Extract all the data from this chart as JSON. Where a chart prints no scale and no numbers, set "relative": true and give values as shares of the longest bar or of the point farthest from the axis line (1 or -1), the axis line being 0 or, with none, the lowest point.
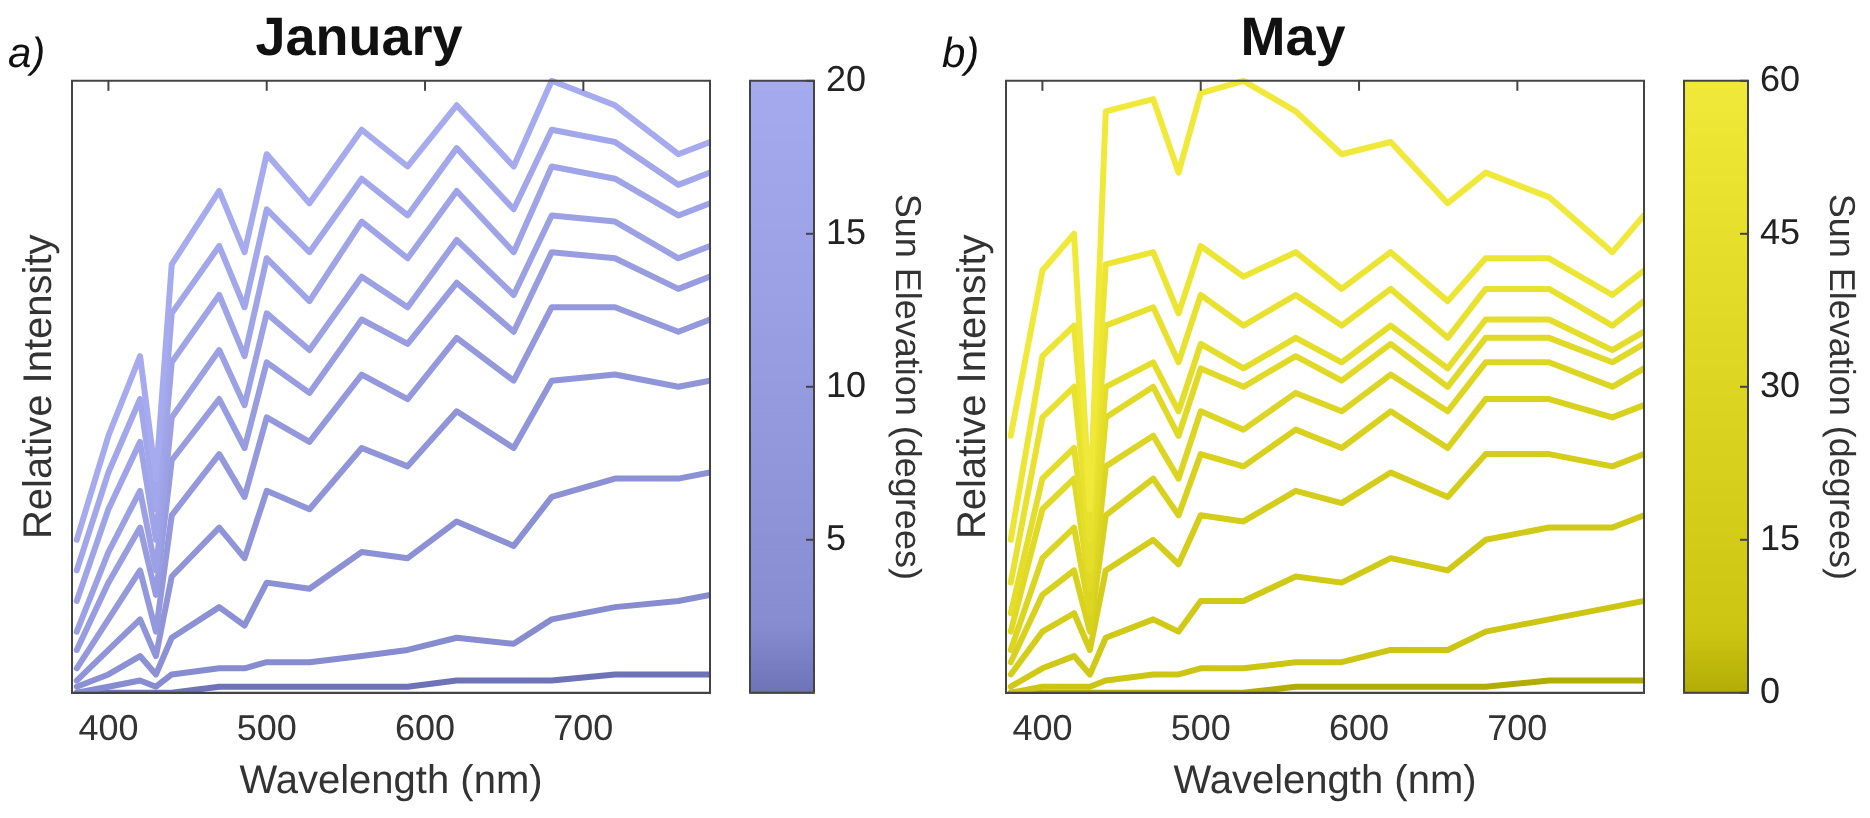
{
  "chart_data": [
    {
      "type": "line",
      "title": "January",
      "xlabel": "Wavelength (nm)",
      "ylabel": "Relative Intensity",
      "clabel": "Sun Elevation (degrees)",
      "annotations": [
        "a)"
      ],
      "relative": true,
      "xlim": [
        377,
        780
      ],
      "xticks": [
        400,
        500,
        600,
        700
      ],
      "clim": [
        0,
        20
      ],
      "cticks": [
        5,
        10,
        15,
        20
      ],
      "x": [
        380,
        400,
        420,
        430,
        440,
        470,
        486,
        500,
        527,
        560,
        589,
        620,
        656,
        680,
        720,
        760,
        780
      ],
      "series": [
        {
          "color": "#a6aaee",
          "values": [
            0.25,
            0.42,
            0.55,
            0.35,
            0.7,
            0.82,
            0.72,
            0.88,
            0.8,
            0.92,
            0.86,
            0.96,
            0.86,
            1.0,
            0.96,
            0.88,
            0.9
          ]
        },
        {
          "color": "#a2a6ea",
          "values": [
            0.2,
            0.36,
            0.48,
            0.3,
            0.62,
            0.73,
            0.63,
            0.79,
            0.72,
            0.84,
            0.78,
            0.89,
            0.79,
            0.92,
            0.9,
            0.83,
            0.85
          ]
        },
        {
          "color": "#9fa3e7",
          "values": [
            0.15,
            0.3,
            0.41,
            0.25,
            0.54,
            0.65,
            0.55,
            0.71,
            0.64,
            0.77,
            0.71,
            0.82,
            0.72,
            0.86,
            0.84,
            0.78,
            0.8
          ]
        },
        {
          "color": "#9ca0e4",
          "values": [
            0.1,
            0.23,
            0.33,
            0.2,
            0.45,
            0.56,
            0.47,
            0.62,
            0.56,
            0.68,
            0.63,
            0.74,
            0.65,
            0.78,
            0.77,
            0.71,
            0.73
          ]
        },
        {
          "color": "#989ce0",
          "values": [
            0.07,
            0.18,
            0.27,
            0.16,
            0.38,
            0.48,
            0.4,
            0.54,
            0.49,
            0.61,
            0.57,
            0.67,
            0.59,
            0.72,
            0.71,
            0.66,
            0.68
          ]
        },
        {
          "color": "#9498dc",
          "values": [
            0.04,
            0.12,
            0.2,
            0.1,
            0.29,
            0.39,
            0.32,
            0.45,
            0.41,
            0.52,
            0.48,
            0.58,
            0.51,
            0.63,
            0.63,
            0.59,
            0.61
          ]
        },
        {
          "color": "#9094d8",
          "values": [
            0.02,
            0.07,
            0.12,
            0.06,
            0.19,
            0.27,
            0.22,
            0.33,
            0.3,
            0.4,
            0.37,
            0.46,
            0.4,
            0.51,
            0.52,
            0.5,
            0.51
          ]
        },
        {
          "color": "#8c90d4",
          "values": [
            0.01,
            0.03,
            0.06,
            0.03,
            0.09,
            0.14,
            0.11,
            0.18,
            0.17,
            0.23,
            0.22,
            0.28,
            0.24,
            0.32,
            0.35,
            0.35,
            0.36
          ]
        },
        {
          "color": "#878bcf",
          "values": [
            0,
            0.01,
            0.02,
            0.01,
            0.03,
            0.04,
            0.04,
            0.05,
            0.05,
            0.06,
            0.07,
            0.09,
            0.08,
            0.12,
            0.14,
            0.15,
            0.16
          ]
        },
        {
          "color": "#6e72b6",
          "values": [
            0,
            0,
            0,
            0,
            0,
            0.01,
            0.01,
            0.01,
            0.01,
            0.01,
            0.01,
            0.02,
            0.02,
            0.02,
            0.03,
            0.03,
            0.03
          ]
        }
      ]
    },
    {
      "type": "line",
      "title": "May",
      "xlabel": "Wavelength (nm)",
      "ylabel": "Relative Intensity",
      "clabel": "Sun Elevation (degrees)",
      "annotations": [
        "b)"
      ],
      "relative": true,
      "xlim": [
        377,
        780
      ],
      "xticks": [
        400,
        500,
        600,
        700
      ],
      "clim": [
        0,
        60
      ],
      "cticks": [
        0,
        15,
        30,
        45,
        60
      ],
      "x": [
        380,
        400,
        420,
        430,
        440,
        470,
        486,
        500,
        527,
        560,
        589,
        620,
        656,
        680,
        720,
        760,
        780
      ],
      "series": [
        {
          "color": "#f0e93a",
          "values": [
            0.42,
            0.69,
            0.75,
            0.3,
            0.95,
            0.97,
            0.85,
            0.98,
            1.0,
            0.95,
            0.88,
            0.9,
            0.8,
            0.85,
            0.81,
            0.72,
            0.78
          ]
        },
        {
          "color": "#ece532",
          "values": [
            0.25,
            0.55,
            0.6,
            0.3,
            0.7,
            0.72,
            0.62,
            0.73,
            0.68,
            0.72,
            0.66,
            0.72,
            0.64,
            0.71,
            0.71,
            0.65,
            0.69
          ]
        },
        {
          "color": "#e8e12e",
          "values": [
            0.18,
            0.45,
            0.5,
            0.25,
            0.6,
            0.63,
            0.54,
            0.65,
            0.6,
            0.65,
            0.6,
            0.66,
            0.58,
            0.66,
            0.66,
            0.6,
            0.64
          ]
        },
        {
          "color": "#e4dd2a",
          "values": [
            0.13,
            0.35,
            0.4,
            0.2,
            0.5,
            0.54,
            0.46,
            0.57,
            0.53,
            0.58,
            0.54,
            0.6,
            0.53,
            0.61,
            0.61,
            0.56,
            0.59
          ]
        },
        {
          "color": "#e0d926",
          "values": [
            0.1,
            0.3,
            0.35,
            0.17,
            0.45,
            0.5,
            0.42,
            0.53,
            0.5,
            0.55,
            0.51,
            0.57,
            0.5,
            0.58,
            0.58,
            0.54,
            0.57
          ]
        },
        {
          "color": "#dcd522",
          "values": [
            0.07,
            0.22,
            0.27,
            0.13,
            0.37,
            0.42,
            0.35,
            0.46,
            0.43,
            0.49,
            0.46,
            0.52,
            0.46,
            0.54,
            0.54,
            0.5,
            0.53
          ]
        },
        {
          "color": "#d8d11e",
          "values": [
            0.05,
            0.16,
            0.2,
            0.1,
            0.29,
            0.35,
            0.29,
            0.39,
            0.37,
            0.43,
            0.4,
            0.46,
            0.4,
            0.48,
            0.48,
            0.45,
            0.47
          ]
        },
        {
          "color": "#d4cd1a",
          "values": [
            0.03,
            0.1,
            0.13,
            0.07,
            0.2,
            0.25,
            0.21,
            0.29,
            0.28,
            0.33,
            0.31,
            0.36,
            0.32,
            0.39,
            0.39,
            0.37,
            0.39
          ]
        },
        {
          "color": "#d0c916",
          "values": [
            0.01,
            0.04,
            0.06,
            0.03,
            0.09,
            0.12,
            0.1,
            0.15,
            0.15,
            0.19,
            0.18,
            0.22,
            0.2,
            0.25,
            0.27,
            0.27,
            0.29
          ]
        },
        {
          "color": "#ccc512",
          "values": [
            0,
            0.01,
            0.01,
            0.01,
            0.02,
            0.03,
            0.03,
            0.04,
            0.04,
            0.05,
            0.05,
            0.07,
            0.07,
            0.1,
            0.12,
            0.14,
            0.15
          ]
        },
        {
          "color": "#b2ac06",
          "values": [
            0,
            0,
            0,
            0,
            0,
            0,
            0,
            0,
            0,
            0.01,
            0.01,
            0.01,
            0.01,
            0.01,
            0.02,
            0.02,
            0.02
          ]
        }
      ]
    }
  ]
}
